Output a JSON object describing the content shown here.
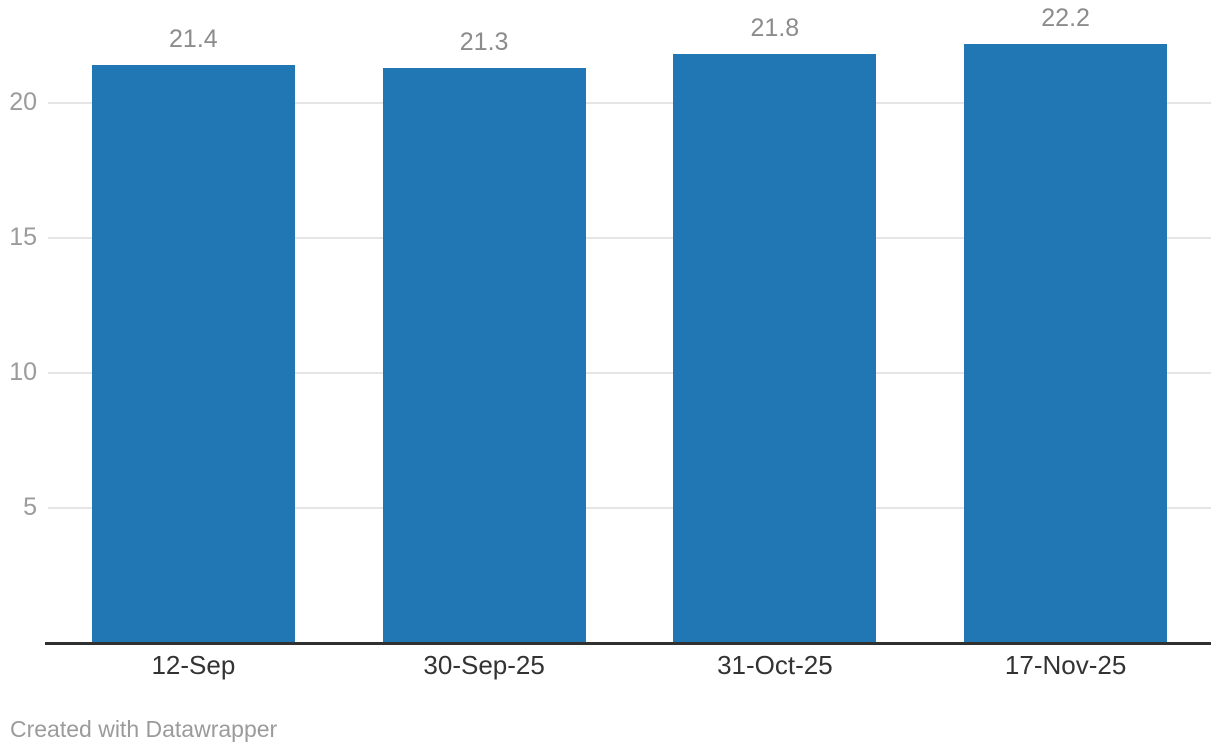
{
  "chart_data": {
    "type": "bar",
    "categories": [
      "12-Sep",
      "30-Sep-25",
      "31-Oct-25",
      "17-Nov-25"
    ],
    "values": [
      21.4,
      21.3,
      21.8,
      22.2
    ],
    "value_labels": [
      "21.4",
      "21.3",
      "21.8",
      "22.2"
    ],
    "yticks": [
      5,
      10,
      15,
      20
    ],
    "ytick_labels": [
      "5",
      "10",
      "15",
      "20"
    ],
    "ylim": [
      0,
      23
    ],
    "xlabel": "",
    "ylabel": "",
    "grid": "horizontal",
    "legend": "none"
  },
  "colors": {
    "bar": "#2077B4",
    "gridline": "#E5E5E5",
    "axis_line": "#303030",
    "value_label": "#8C8C8C",
    "y_tick_label": "#9B9B9B",
    "x_tick_label": "#333333",
    "credit": "#9B9B9B",
    "background": "#FFFFFF"
  },
  "footer": {
    "credit": "Created with Datawrapper"
  }
}
